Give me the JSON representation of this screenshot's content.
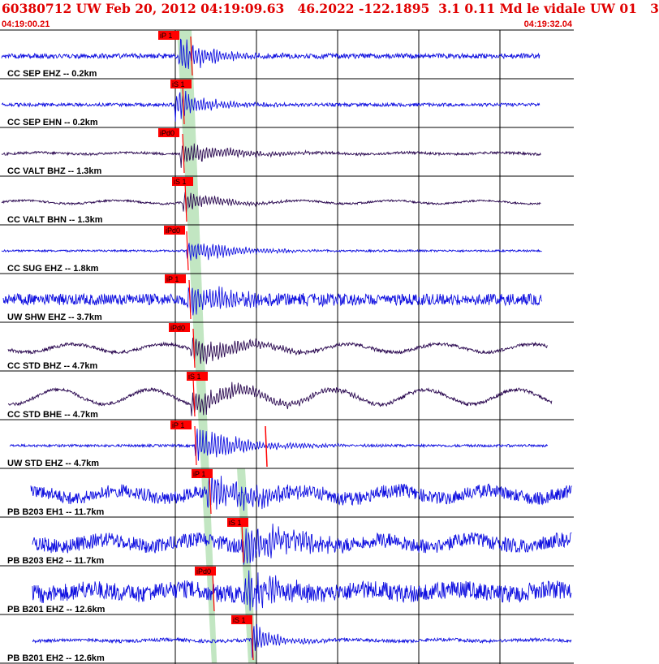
{
  "header": {
    "title": "60380712 UW Feb 20, 2012 04:19:09.63   46.2022 -122.1895  3.1 0.11 Md le vidale UW 01   3",
    "start_time": "04:19:00.21",
    "end_time": "04:19:32.04"
  },
  "chart_data": {
    "type": "line",
    "title": "60380712 UW Feb 20, 2012 04:19:09.63   46.2022 -122.1895  3.1 0.11 Md le vidale UW 01   3",
    "x_range": [
      "04:19:00.21",
      "04:19:32.04"
    ],
    "grid": true,
    "colors": {
      "blue": "#1010e0",
      "purple": "#2a0850",
      "pick": "#ff0000",
      "window": "#c2e6c2"
    },
    "series": [
      {
        "name": "CC SEP EHZ -- 0.2km",
        "pick": "iP 1",
        "color": "blue"
      },
      {
        "name": "CC SEP EHN -- 0.2km",
        "pick": "iS 1",
        "color": "blue"
      },
      {
        "name": "CC VALT BHZ -- 1.3km",
        "pick": "iPd0",
        "color": "purple"
      },
      {
        "name": "CC VALT BHN -- 1.3km",
        "pick": "iS 1",
        "color": "purple"
      },
      {
        "name": "CC SUG EHZ -- 1.8km",
        "pick": "iPd0",
        "color": "blue"
      },
      {
        "name": "UW SHW EHZ -- 3.7km",
        "pick": "iP 1",
        "color": "blue"
      },
      {
        "name": "CC STD BHZ -- 4.7km",
        "pick": "iPd0",
        "color": "purple"
      },
      {
        "name": "CC STD BHE -- 4.7km",
        "pick": "iS 1",
        "color": "purple"
      },
      {
        "name": "UW STD EHZ -- 4.7km",
        "pick": "iP 1",
        "color": "blue"
      },
      {
        "name": "PB B203 EH1 -- 11.7km",
        "pick": "iP 1",
        "color": "blue"
      },
      {
        "name": "PB B203 EH2 -- 11.7km",
        "pick": "iS 1",
        "color": "blue"
      },
      {
        "name": "PB B201 EHZ -- 12.6km",
        "pick": "iPd0",
        "color": "blue"
      },
      {
        "name": "PB B201 EH2 -- 12.6km",
        "pick": "iS 1",
        "color": "blue"
      }
    ]
  }
}
